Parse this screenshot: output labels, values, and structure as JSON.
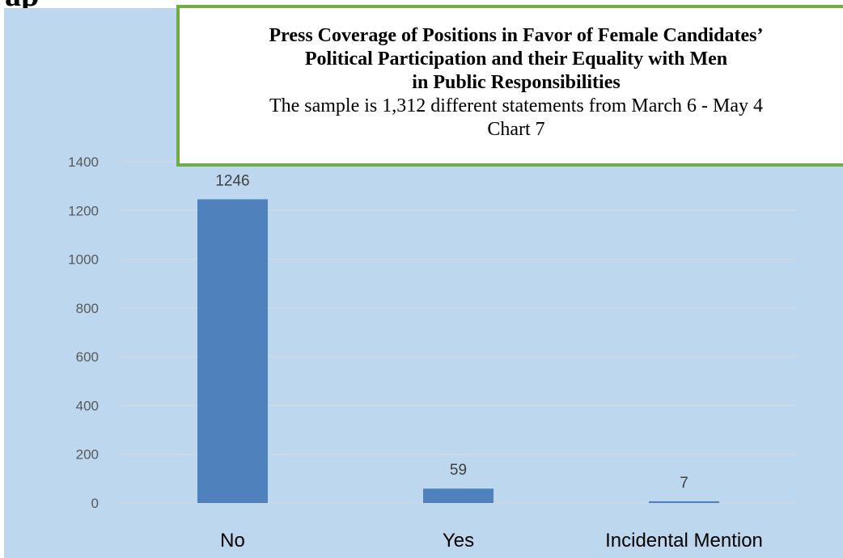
{
  "page": {
    "top_fragment": "ap"
  },
  "chart_data": {
    "type": "bar",
    "title_lines": [
      "Press Coverage of Positions in Favor of Female Candidates’",
      "Political Participation and their Equality with Men",
      "in Public Responsibilities"
    ],
    "subtitle_lines": [
      "The sample is 1,312 different statements from March 6 - May 4",
      "Chart 7"
    ],
    "categories": [
      "No",
      "Yes",
      "Incidental Mention"
    ],
    "values": [
      1246,
      59,
      7
    ],
    "data_labels": [
      "1246",
      "59",
      "7"
    ],
    "xlabel": "",
    "ylabel": "",
    "ylim": [
      0,
      1400
    ],
    "y_ticks": [
      0,
      200,
      400,
      600,
      800,
      1000,
      1200,
      1400
    ],
    "grid": true,
    "legend": "none",
    "colors": {
      "bar": "#4f81bd",
      "plot_background": "#bdd7ee",
      "title_border": "#70ad47",
      "gridline": "#d9d9d9"
    }
  }
}
